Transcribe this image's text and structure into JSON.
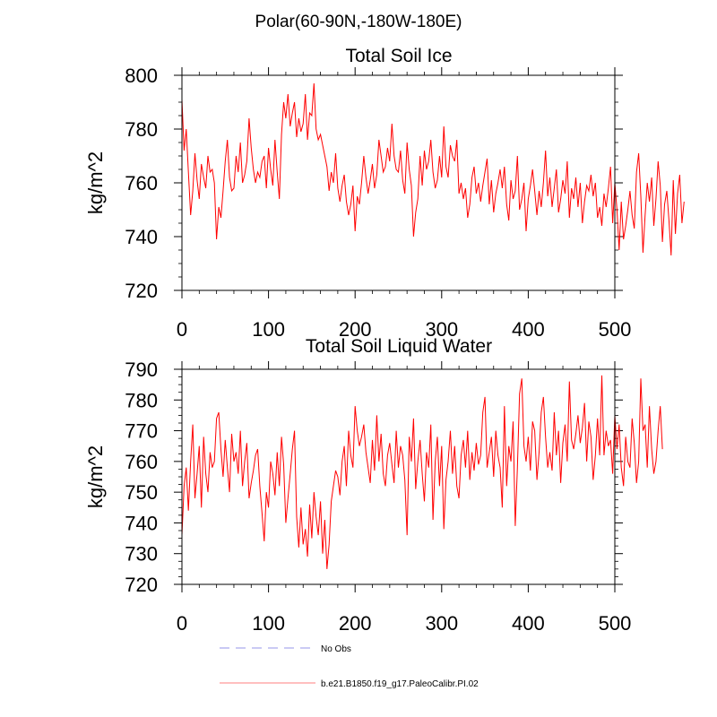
{
  "suptitle": "Polar(60-90N,-180W-180E)",
  "chart_data": [
    {
      "type": "line",
      "title": "Total Soil Ice",
      "xlabel": "",
      "ylabel": "kg/m^2",
      "xlim": [
        0,
        500
      ],
      "ylim": [
        720,
        800
      ],
      "xticks": [
        0,
        100,
        200,
        300,
        400,
        500
      ],
      "yticks": [
        720,
        740,
        760,
        780,
        800
      ],
      "xtick_labels": [
        "0",
        "100",
        "200",
        "300",
        "400",
        "500"
      ],
      "ytick_labels": [
        "720",
        "740",
        "760",
        "780",
        "800"
      ],
      "series": [
        {
          "name": "b.e21.B1850.f19_g17.PaleoCalibr.PI.02",
          "color": "#ff0000",
          "x_start": 0,
          "x_step": 2.5,
          "values": [
            791,
            772,
            780,
            764,
            748,
            757,
            771,
            761,
            754,
            767,
            762,
            758,
            770,
            764,
            765,
            760,
            739,
            751,
            747,
            757,
            768,
            776,
            762,
            757,
            758,
            770,
            764,
            775,
            760,
            763,
            768,
            784,
            773,
            765,
            760,
            764,
            762,
            768,
            770,
            758,
            773,
            765,
            759,
            776,
            764,
            754,
            778,
            790,
            784,
            793,
            781,
            786,
            790,
            777,
            784,
            779,
            782,
            793,
            776,
            786,
            785,
            797,
            780,
            776,
            778,
            774,
            770,
            766,
            757,
            764,
            760,
            771,
            758,
            753,
            759,
            763,
            753,
            748,
            752,
            759,
            742,
            755,
            752,
            760,
            770,
            762,
            756,
            761,
            767,
            758,
            763,
            776,
            770,
            764,
            766,
            773,
            768,
            782,
            770,
            765,
            764,
            772,
            761,
            756,
            775,
            765,
            759,
            740,
            749,
            754,
            770,
            759,
            772,
            765,
            768,
            776,
            764,
            758,
            761,
            770,
            762,
            781,
            766,
            762,
            774,
            770,
            768,
            776,
            756,
            760,
            754,
            758,
            747,
            752,
            762,
            766,
            756,
            760,
            753,
            759,
            764,
            769,
            752,
            761,
            749,
            756,
            760,
            765,
            758,
            766,
            752,
            746,
            761,
            754,
            757,
            770,
            750,
            754,
            760,
            742,
            754,
            759,
            765,
            757,
            748,
            757,
            751,
            760,
            772,
            755,
            762,
            751,
            758,
            765,
            749,
            754,
            761,
            756,
            768,
            747,
            758,
            754,
            762,
            751,
            760,
            745,
            753,
            759,
            757,
            763,
            755,
            760,
            747,
            751,
            744,
            756,
            751,
            758,
            766,
            745,
            760,
            750,
            735,
            753,
            739,
            744,
            750,
            757,
            748,
            743,
            764,
            771,
            755,
            734,
            748,
            760,
            753,
            762,
            744,
            754,
            768,
            759,
            738,
            752,
            757,
            746,
            733,
            761,
            741,
            756,
            763,
            745,
            753
          ]
        }
      ],
      "legend": "bottom"
    },
    {
      "type": "line",
      "title": "Total Soil Liquid Water",
      "xlabel": "",
      "ylabel": "kg/m^2",
      "xlim": [
        0,
        500
      ],
      "ylim": [
        720,
        790
      ],
      "xticks": [
        0,
        100,
        200,
        300,
        400,
        500
      ],
      "yticks": [
        720,
        730,
        740,
        750,
        760,
        770,
        780,
        790
      ],
      "xtick_labels": [
        "0",
        "100",
        "200",
        "300",
        "400",
        "500"
      ],
      "ytick_labels": [
        "720",
        "730",
        "740",
        "750",
        "760",
        "770",
        "780",
        "790"
      ],
      "series": [
        {
          "name": "b.e21.B1850.f19_g17.PaleoCalibr.PI.02",
          "color": "#ff0000",
          "x_start": 0,
          "x_step": 2.5,
          "values": [
            736,
            752,
            758,
            744,
            760,
            772,
            748,
            756,
            765,
            745,
            768,
            756,
            750,
            763,
            758,
            760,
            774,
            776,
            764,
            755,
            767,
            758,
            750,
            769,
            760,
            763,
            756,
            770,
            752,
            760,
            766,
            748,
            753,
            757,
            762,
            764,
            752,
            743,
            734,
            750,
            745,
            760,
            756,
            749,
            763,
            752,
            768,
            759,
            740,
            748,
            756,
            764,
            770,
            742,
            732,
            745,
            733,
            738,
            729,
            746,
            735,
            750,
            742,
            736,
            747,
            730,
            741,
            725,
            733,
            747,
            752,
            757,
            755,
            749,
            760,
            765,
            752,
            770,
            762,
            758,
            778,
            770,
            765,
            768,
            772,
            763,
            758,
            753,
            767,
            757,
            775,
            760,
            769,
            756,
            752,
            762,
            766,
            759,
            753,
            770,
            758,
            765,
            762,
            754,
            736,
            768,
            760,
            774,
            751,
            760,
            767,
            756,
            747,
            763,
            758,
            772,
            741,
            760,
            768,
            752,
            765,
            738,
            754,
            760,
            770,
            756,
            765,
            752,
            748,
            762,
            767,
            758,
            770,
            754,
            763,
            757,
            766,
            759,
            762,
            776,
            781,
            758,
            763,
            768,
            755,
            770,
            762,
            758,
            745,
            778,
            752,
            765,
            760,
            773,
            739,
            758,
            782,
            787,
            765,
            760,
            768,
            757,
            773,
            770,
            754,
            763,
            776,
            781,
            768,
            758,
            763,
            757,
            776,
            762,
            770,
            753,
            766,
            772,
            760,
            786,
            767,
            764,
            769,
            775,
            766,
            771,
            779,
            760,
            773,
            768,
            754,
            762,
            774,
            762,
            788,
            762,
            770,
            765,
            767,
            756,
            775,
            764,
            772,
            758,
            752,
            768,
            760,
            758,
            774,
            766,
            753,
            760,
            787,
            770,
            772,
            758,
            778,
            764,
            756,
            760,
            770,
            778,
            764
          ]
        }
      ],
      "legend": "bottom"
    }
  ],
  "legend_entries": [
    {
      "label": "No Obs",
      "style": "dashed",
      "color": "#aaaaee"
    },
    {
      "label": "b.e21.B1850.f19_g17.PaleoCalibr.PI.02",
      "style": "solid",
      "color": "#ff0000"
    }
  ]
}
